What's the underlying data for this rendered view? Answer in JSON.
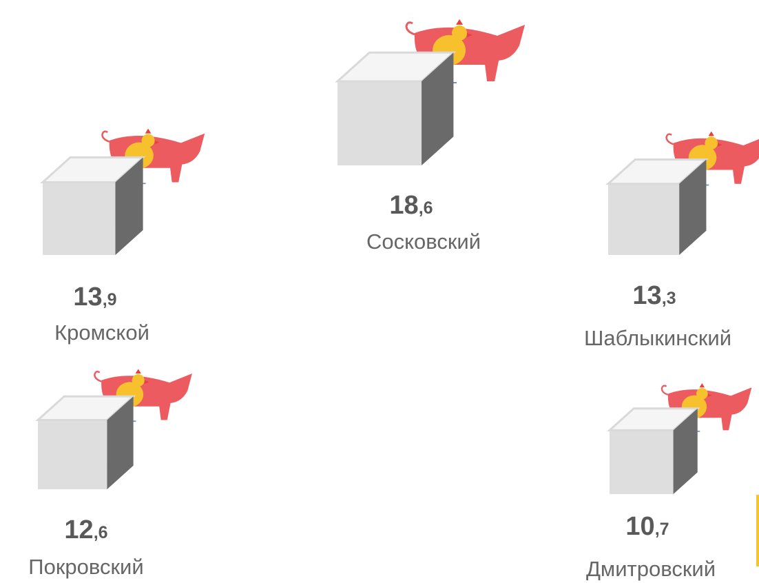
{
  "items": [
    {
      "name": "Сосковский",
      "value": 18.6,
      "value_label": "18,6"
    },
    {
      "name": "Кромской",
      "value": 13.9,
      "value_label": "13,9"
    },
    {
      "name": "Шаблыкинский",
      "value": 13.3,
      "value_label": "13,3"
    },
    {
      "name": "Покровский",
      "value": 12.6,
      "value_label": "12,6"
    },
    {
      "name": "Дмитровский",
      "value": 10.7,
      "value_label": "10,7"
    }
  ]
}
